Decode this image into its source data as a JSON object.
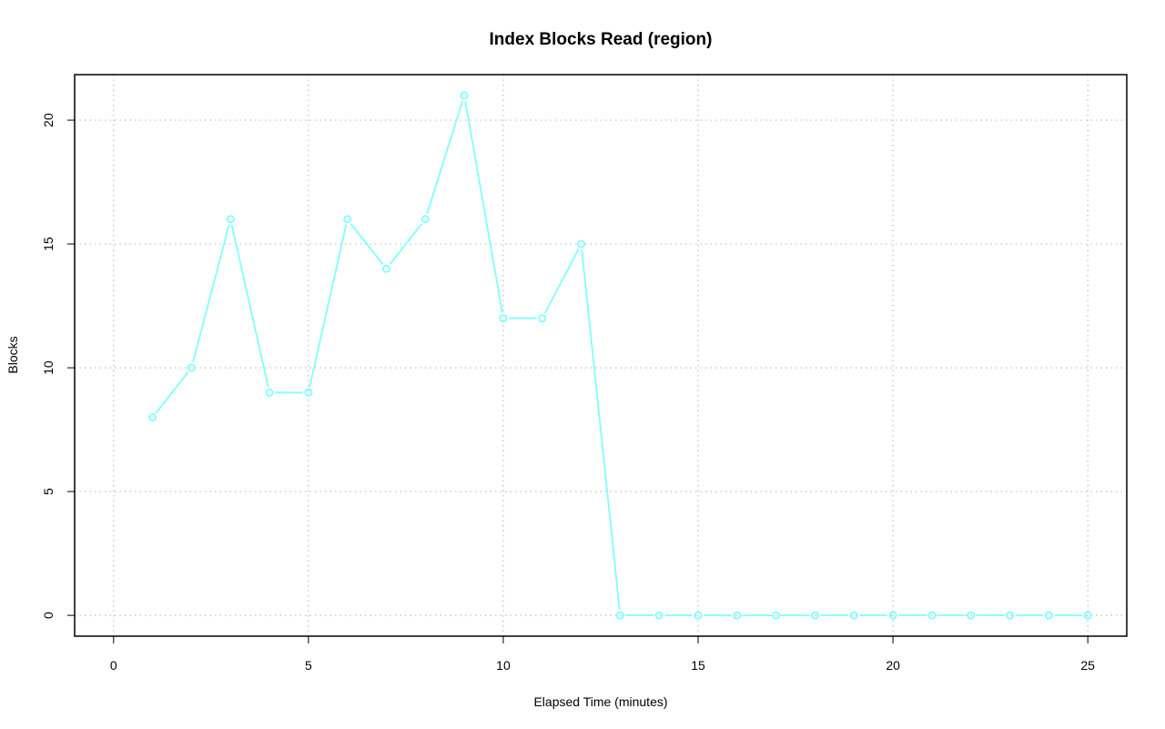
{
  "chart_data": {
    "type": "line",
    "title": "Index Blocks Read (region)",
    "xlabel": "Elapsed Time (minutes)",
    "ylabel": "Blocks",
    "xlim": [
      -1,
      26
    ],
    "ylim": [
      -0.84,
      21.84
    ],
    "x_ticks": [
      0,
      5,
      10,
      15,
      20,
      25
    ],
    "y_ticks": [
      0,
      5,
      10,
      15,
      20
    ],
    "grid": true,
    "series": [
      {
        "color": "#80FFFF",
        "marker": "open-circle",
        "x": [
          1,
          2,
          3,
          4,
          5,
          6,
          7,
          8,
          9,
          10,
          11,
          12,
          13,
          14,
          15,
          16,
          17,
          18,
          19,
          20,
          21,
          22,
          23,
          24,
          25
        ],
        "values": [
          8,
          10,
          16,
          9,
          9,
          16,
          14,
          16,
          21,
          12,
          12,
          15,
          0,
          0,
          0,
          0,
          0,
          0,
          0,
          0,
          0,
          0,
          0,
          0,
          0
        ]
      }
    ]
  }
}
